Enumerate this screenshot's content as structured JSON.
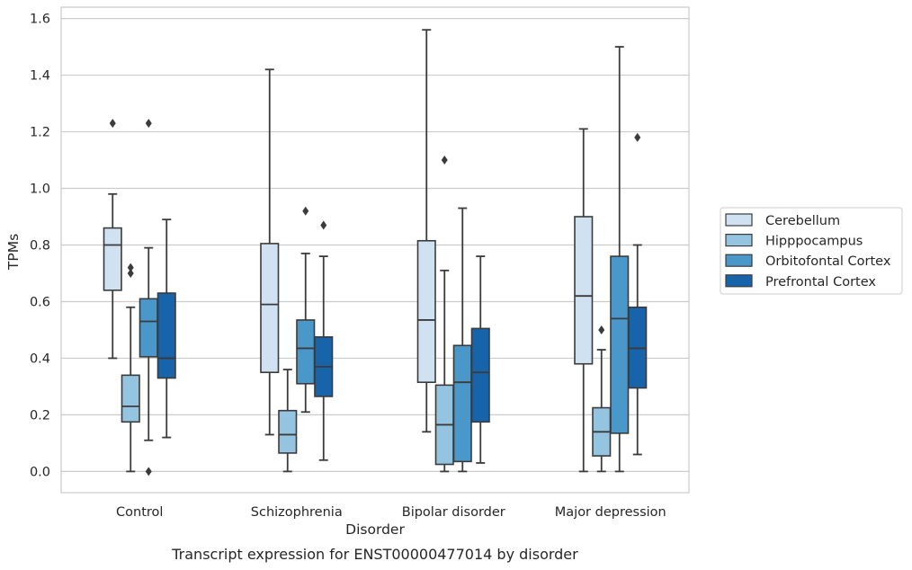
{
  "caption": "Transcript expression for ENST00000477014 by disorder",
  "chart_data": {
    "type": "boxplot",
    "xlabel": "Disorder",
    "ylabel": "TPMs",
    "ylim": [
      -0.075,
      1.64
    ],
    "yticks": [
      0.0,
      0.2,
      0.4,
      0.6,
      0.8,
      1.0,
      1.2,
      1.4,
      1.6
    ],
    "ytick_labels": [
      "0.0",
      "0.2",
      "0.4",
      "0.6",
      "0.8",
      "1.0",
      "1.2",
      "1.4",
      "1.6"
    ],
    "grid": "horizontal",
    "legend_placement": "right",
    "categories": [
      "Control",
      "Schizophrenia",
      "Bipolar disorder",
      "Major depression"
    ],
    "series": [
      {
        "name": "Cerebellum",
        "color": "#d0e1f2",
        "boxes": [
          {
            "whislo": 0.4,
            "q1": 0.64,
            "med": 0.8,
            "q3": 0.86,
            "whishi": 0.98,
            "fliers": [
              1.23
            ]
          },
          {
            "whislo": 0.13,
            "q1": 0.35,
            "med": 0.59,
            "q3": 0.805,
            "whishi": 1.42,
            "fliers": []
          },
          {
            "whislo": 0.14,
            "q1": 0.315,
            "med": 0.535,
            "q3": 0.815,
            "whishi": 1.56,
            "fliers": []
          },
          {
            "whislo": 0.0,
            "q1": 0.38,
            "med": 0.62,
            "q3": 0.9,
            "whishi": 1.21,
            "fliers": []
          }
        ]
      },
      {
        "name": "Hipppocampus",
        "color": "#94c4df",
        "boxes": [
          {
            "whislo": 0.0,
            "q1": 0.175,
            "med": 0.23,
            "q3": 0.34,
            "whishi": 0.58,
            "fliers": [
              0.7,
              0.72
            ]
          },
          {
            "whislo": 0.0,
            "q1": 0.065,
            "med": 0.13,
            "q3": 0.215,
            "whishi": 0.36,
            "fliers": []
          },
          {
            "whislo": 0.0,
            "q1": 0.025,
            "med": 0.165,
            "q3": 0.305,
            "whishi": 0.71,
            "fliers": [
              1.1
            ]
          },
          {
            "whislo": 0.0,
            "q1": 0.055,
            "med": 0.14,
            "q3": 0.225,
            "whishi": 0.43,
            "fliers": [
              0.5
            ]
          }
        ]
      },
      {
        "name": "Orbitofontal Cortex",
        "color": "#4a98c9",
        "boxes": [
          {
            "whislo": 0.11,
            "q1": 0.405,
            "med": 0.53,
            "q3": 0.61,
            "whishi": 0.79,
            "fliers": [
              1.23,
              0.0
            ]
          },
          {
            "whislo": 0.21,
            "q1": 0.31,
            "med": 0.435,
            "q3": 0.535,
            "whishi": 0.77,
            "fliers": [
              0.92
            ]
          },
          {
            "whislo": 0.0,
            "q1": 0.035,
            "med": 0.315,
            "q3": 0.445,
            "whishi": 0.93,
            "fliers": []
          },
          {
            "whislo": 0.0,
            "q1": 0.135,
            "med": 0.54,
            "q3": 0.76,
            "whishi": 1.5,
            "fliers": []
          }
        ]
      },
      {
        "name": "Prefrontal Cortex",
        "color": "#1764ab",
        "boxes": [
          {
            "whislo": 0.12,
            "q1": 0.33,
            "med": 0.4,
            "q3": 0.63,
            "whishi": 0.89,
            "fliers": []
          },
          {
            "whislo": 0.04,
            "q1": 0.265,
            "med": 0.37,
            "q3": 0.475,
            "whishi": 0.76,
            "fliers": [
              0.87
            ]
          },
          {
            "whislo": 0.03,
            "q1": 0.175,
            "med": 0.35,
            "q3": 0.505,
            "whishi": 0.76,
            "fliers": []
          },
          {
            "whislo": 0.06,
            "q1": 0.295,
            "med": 0.435,
            "q3": 0.58,
            "whishi": 0.8,
            "fliers": [
              1.18
            ]
          }
        ]
      }
    ]
  }
}
